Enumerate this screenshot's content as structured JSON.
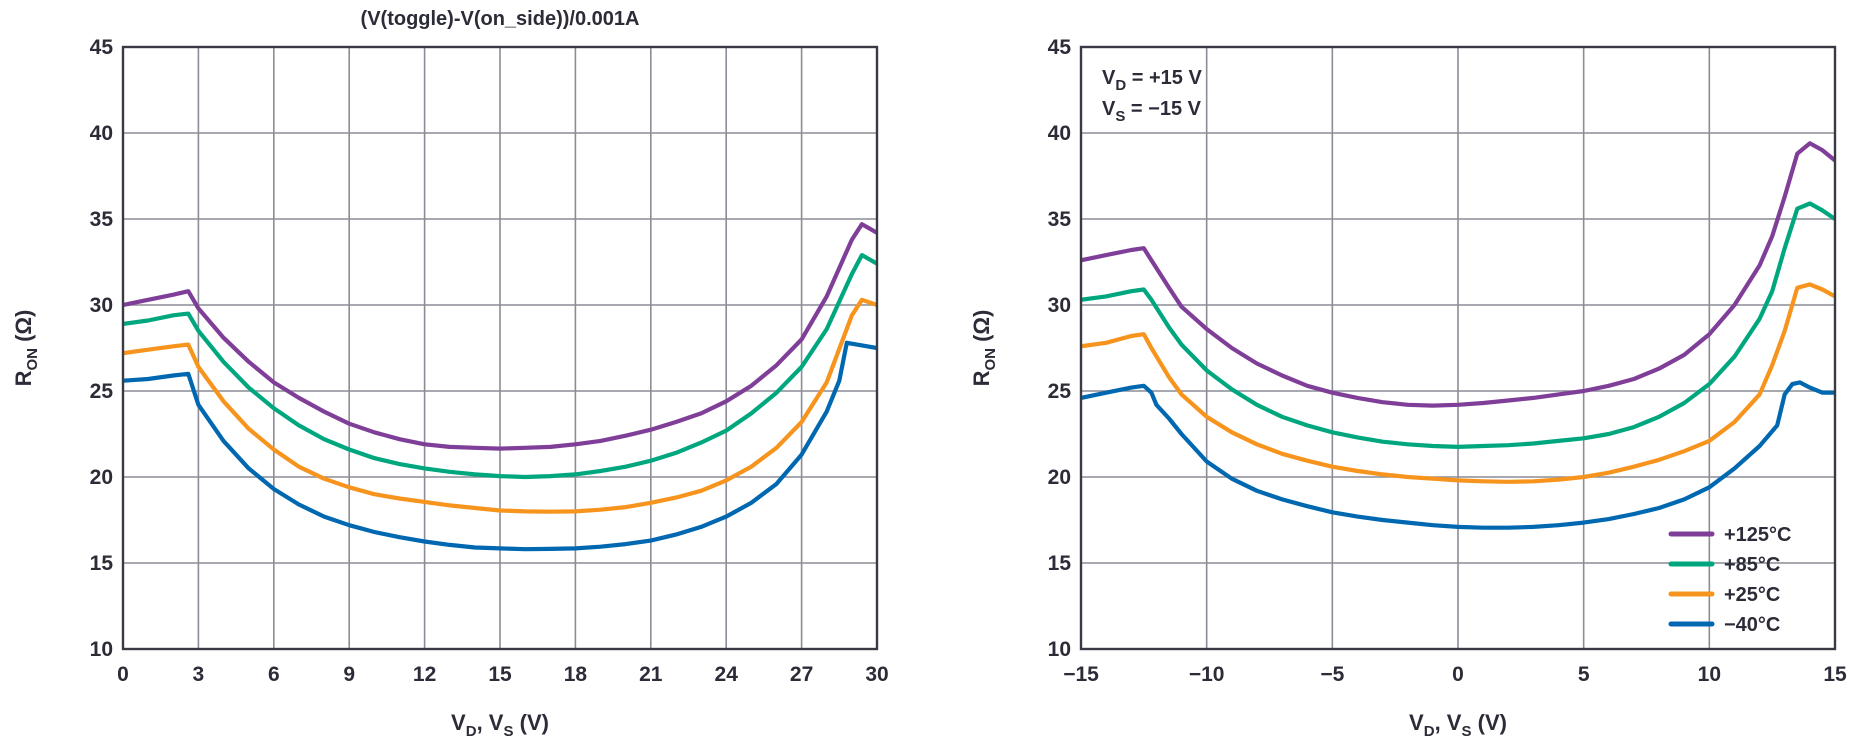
{
  "chart_data": [
    {
      "type": "line",
      "title": "(V(toggle)-V(on_side))/0.001A",
      "xlabel": {
        "main": "V",
        "sub1": "D",
        "mid": ", V",
        "sub2": "S",
        "tail": " (V)"
      },
      "ylabel": {
        "main": "R",
        "sub": "ON",
        "tail": " (Ω)"
      },
      "xlim": [
        0,
        30
      ],
      "ylim": [
        10,
        45
      ],
      "xticks": [
        "0",
        "3",
        "6",
        "9",
        "12",
        "15",
        "18",
        "21",
        "24",
        "27",
        "30"
      ],
      "yticks": [
        "10",
        "15",
        "20",
        "25",
        "30",
        "35",
        "40",
        "45"
      ],
      "grid": true,
      "series": [
        {
          "color": "#7f3f98",
          "x": [
            0,
            1,
            2,
            2.6,
            3,
            4,
            5,
            6,
            7,
            8,
            9,
            10,
            11,
            12,
            13,
            14,
            15,
            16,
            17,
            18,
            19,
            20,
            21,
            22,
            23,
            24,
            25,
            26,
            27,
            28,
            29,
            29.4,
            30
          ],
          "values": [
            30.0,
            30.3,
            30.6,
            30.8,
            29.8,
            28.1,
            26.7,
            25.5,
            24.6,
            23.8,
            23.1,
            22.6,
            22.2,
            21.9,
            21.75,
            21.7,
            21.65,
            21.7,
            21.75,
            21.9,
            22.1,
            22.4,
            22.75,
            23.2,
            23.7,
            24.4,
            25.3,
            26.5,
            28.0,
            30.5,
            33.8,
            34.7,
            34.2
          ]
        },
        {
          "color": "#00a77e",
          "x": [
            0,
            1,
            2,
            2.6,
            3,
            4,
            5,
            6,
            7,
            8,
            9,
            10,
            11,
            12,
            13,
            14,
            15,
            16,
            17,
            18,
            19,
            20,
            21,
            22,
            23,
            24,
            25,
            26,
            27,
            28,
            29,
            29.4,
            30
          ],
          "values": [
            28.9,
            29.1,
            29.4,
            29.5,
            28.5,
            26.7,
            25.2,
            24.0,
            23.0,
            22.2,
            21.6,
            21.1,
            20.75,
            20.5,
            20.3,
            20.15,
            20.05,
            20.0,
            20.05,
            20.15,
            20.35,
            20.6,
            20.95,
            21.4,
            22.0,
            22.7,
            23.7,
            24.9,
            26.4,
            28.6,
            31.8,
            32.9,
            32.4
          ]
        },
        {
          "color": "#f7941d",
          "x": [
            0,
            1,
            2,
            2.6,
            3,
            4,
            5,
            6,
            7,
            8,
            9,
            10,
            11,
            12,
            13,
            14,
            15,
            16,
            17,
            18,
            19,
            20,
            21,
            22,
            23,
            24,
            25,
            26,
            27,
            28,
            29,
            29.4,
            30
          ],
          "values": [
            27.2,
            27.4,
            27.6,
            27.7,
            26.4,
            24.4,
            22.8,
            21.6,
            20.6,
            19.9,
            19.4,
            19.0,
            18.75,
            18.55,
            18.35,
            18.2,
            18.05,
            18.0,
            17.98,
            18.0,
            18.1,
            18.25,
            18.5,
            18.8,
            19.2,
            19.8,
            20.6,
            21.7,
            23.2,
            25.5,
            29.4,
            30.3,
            30.0
          ]
        },
        {
          "color": "#0067b1",
          "x": [
            0,
            1,
            2,
            2.6,
            3,
            4,
            5,
            6,
            7,
            8,
            9,
            10,
            11,
            12,
            13,
            14,
            15,
            16,
            17,
            18,
            19,
            20,
            21,
            22,
            23,
            24,
            25,
            26,
            27,
            28,
            28.5,
            28.8,
            29.2,
            30
          ],
          "values": [
            25.6,
            25.7,
            25.9,
            26.0,
            24.2,
            22.1,
            20.5,
            19.3,
            18.4,
            17.7,
            17.2,
            16.8,
            16.5,
            16.25,
            16.05,
            15.9,
            15.85,
            15.8,
            15.82,
            15.85,
            15.95,
            16.1,
            16.3,
            16.65,
            17.1,
            17.7,
            18.5,
            19.6,
            21.3,
            23.8,
            25.6,
            27.8,
            27.7,
            27.5
          ]
        }
      ]
    },
    {
      "type": "line",
      "xlabel": {
        "main": "V",
        "sub1": "D",
        "mid": ", V",
        "sub2": "S",
        "tail": " (V)"
      },
      "ylabel": {
        "main": "R",
        "sub": "ON",
        "tail": " (Ω)"
      },
      "annotation": [
        {
          "main": "V",
          "sub": "D",
          "tail": " = +15 V"
        },
        {
          "main": "V",
          "sub": "S",
          "tail": " = −15 V"
        }
      ],
      "xlim": [
        -15,
        15
      ],
      "ylim": [
        10,
        45
      ],
      "xticks": [
        "−15",
        "−10",
        "−5",
        "0",
        "5",
        "10",
        "15"
      ],
      "yticks": [
        "10",
        "15",
        "20",
        "25",
        "30",
        "35",
        "40",
        "45"
      ],
      "grid": true,
      "legend_position": "bottom-right",
      "series": [
        {
          "name": "+125°C",
          "color": "#7f3f98",
          "x": [
            -15,
            -14,
            -13,
            -12.5,
            -12.2,
            -11.5,
            -11,
            -10,
            -9,
            -8,
            -7,
            -6,
            -5,
            -4,
            -3,
            -2,
            -1,
            0,
            1,
            2,
            3,
            4,
            5,
            6,
            7,
            8,
            9,
            10,
            11,
            12,
            12.5,
            13,
            13.5,
            14,
            14.5,
            15
          ],
          "values": [
            32.6,
            32.9,
            33.2,
            33.3,
            32.6,
            31.0,
            29.9,
            28.6,
            27.5,
            26.6,
            25.9,
            25.3,
            24.9,
            24.6,
            24.35,
            24.2,
            24.15,
            24.2,
            24.3,
            24.45,
            24.6,
            24.8,
            25.0,
            25.3,
            25.7,
            26.3,
            27.1,
            28.3,
            30.0,
            32.3,
            34.0,
            36.3,
            38.8,
            39.4,
            39.0,
            38.4
          ]
        },
        {
          "name": "+85°C",
          "color": "#00a77e",
          "x": [
            -15,
            -14,
            -13,
            -12.5,
            -12.2,
            -11.5,
            -11,
            -10,
            -9,
            -8,
            -7,
            -6,
            -5,
            -4,
            -3,
            -2,
            -1,
            0,
            1,
            2,
            3,
            4,
            5,
            6,
            7,
            8,
            9,
            10,
            11,
            12,
            12.5,
            13,
            13.5,
            14,
            14.5,
            15
          ],
          "values": [
            30.3,
            30.5,
            30.8,
            30.9,
            30.3,
            28.7,
            27.7,
            26.2,
            25.1,
            24.2,
            23.5,
            23.0,
            22.6,
            22.3,
            22.05,
            21.9,
            21.8,
            21.75,
            21.8,
            21.85,
            21.95,
            22.1,
            22.25,
            22.5,
            22.9,
            23.5,
            24.3,
            25.4,
            27.0,
            29.2,
            30.8,
            33.3,
            35.6,
            35.9,
            35.5,
            35.0
          ]
        },
        {
          "name": "+25°C",
          "color": "#f7941d",
          "x": [
            -15,
            -14,
            -13,
            -12.5,
            -12.2,
            -11.5,
            -11,
            -10,
            -9,
            -8,
            -7,
            -6,
            -5,
            -4,
            -3,
            -2,
            -1,
            0,
            1,
            2,
            3,
            4,
            5,
            6,
            7,
            8,
            9,
            10,
            11,
            12,
            12.5,
            13,
            13.5,
            14,
            14.5,
            15
          ],
          "values": [
            27.6,
            27.8,
            28.2,
            28.3,
            27.5,
            25.8,
            24.8,
            23.5,
            22.6,
            21.9,
            21.35,
            20.95,
            20.6,
            20.35,
            20.15,
            20.0,
            19.9,
            19.8,
            19.75,
            19.72,
            19.75,
            19.85,
            20.0,
            20.25,
            20.6,
            21.0,
            21.5,
            22.1,
            23.2,
            24.8,
            26.5,
            28.5,
            31.0,
            31.2,
            30.9,
            30.5
          ]
        },
        {
          "name": "−40°C",
          "color": "#0067b1",
          "x": [
            -15,
            -14,
            -13,
            -12.5,
            -12.2,
            -12,
            -11.5,
            -11,
            -10,
            -9,
            -8,
            -7,
            -6,
            -5,
            -4,
            -3,
            -2,
            -1,
            0,
            1,
            2,
            3,
            4,
            5,
            6,
            7,
            8,
            9,
            10,
            11,
            12,
            12.7,
            13,
            13.3,
            13.6,
            14,
            14.5,
            15
          ],
          "values": [
            24.6,
            24.9,
            25.2,
            25.3,
            24.9,
            24.2,
            23.4,
            22.5,
            20.9,
            19.9,
            19.2,
            18.7,
            18.3,
            17.95,
            17.7,
            17.5,
            17.35,
            17.2,
            17.1,
            17.05,
            17.05,
            17.1,
            17.2,
            17.35,
            17.55,
            17.85,
            18.2,
            18.7,
            19.4,
            20.5,
            21.8,
            23.0,
            24.8,
            25.4,
            25.5,
            25.2,
            24.9,
            24.9
          ]
        }
      ]
    }
  ]
}
